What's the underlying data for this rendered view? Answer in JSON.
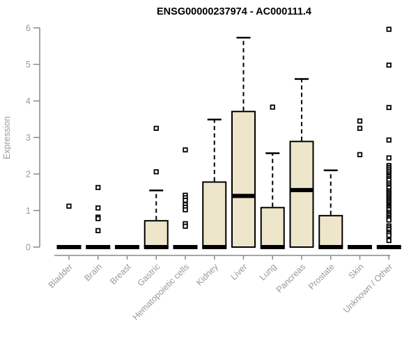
{
  "page": {
    "background": "#ffffff"
  },
  "colors": {
    "box_fill": "#EDE6CA",
    "box_stroke": "#000000",
    "median": "#000000",
    "whisker": "#000000",
    "outlier_fill": "#ffffff",
    "outlier_stroke": "#000000",
    "axis_line": "#888888",
    "tick_label": "#999999",
    "title": "#000000"
  },
  "chart_data": {
    "type": "boxplot",
    "title": "ENSG00000237974 - AC000111.4",
    "xlabel": "",
    "ylabel": "Expression",
    "ylim": [
      0,
      6
    ],
    "yticks": [
      0,
      1,
      2,
      3,
      4,
      5,
      6
    ],
    "grid": false,
    "legend": false,
    "categories": [
      "Bladder",
      "Brain",
      "Breast",
      "Gastric",
      "Hematopoietic cells",
      "Kidney",
      "Liver",
      "Lung",
      "Pancreas",
      "Prostate",
      "Skin",
      "Unknown / Other"
    ],
    "series": [
      {
        "name": "Bladder",
        "low": 0,
        "q1": 0,
        "median": 0,
        "q3": 0,
        "high": 0,
        "outliers": [
          1.12
        ]
      },
      {
        "name": "Brain",
        "low": 0,
        "q1": 0,
        "median": 0,
        "q3": 0,
        "high": 0,
        "outliers": [
          1.63,
          1.07,
          0.82,
          0.78,
          0.45
        ]
      },
      {
        "name": "Breast",
        "low": 0,
        "q1": 0,
        "median": 0,
        "q3": 0,
        "high": 0,
        "outliers": []
      },
      {
        "name": "Gastric",
        "low": 0,
        "q1": 0,
        "median": 0,
        "q3": 0.72,
        "high": 1.55,
        "outliers": [
          3.25,
          2.06
        ]
      },
      {
        "name": "Hematopoietic cells",
        "low": 0,
        "q1": 0,
        "median": 0,
        "q3": 0,
        "high": 0,
        "outliers": [
          2.66,
          1.42,
          1.35,
          1.28,
          1.16,
          1.09,
          1.02,
          0.64,
          0.57
        ]
      },
      {
        "name": "Kidney",
        "low": 0,
        "q1": 0,
        "median": 0,
        "q3": 1.78,
        "high": 3.49,
        "outliers": []
      },
      {
        "name": "Liver",
        "low": 0,
        "q1": 0,
        "median": 1.4,
        "q3": 3.71,
        "high": 5.73,
        "outliers": []
      },
      {
        "name": "Lung",
        "low": 0,
        "q1": 0,
        "median": 0,
        "q3": 1.08,
        "high": 2.57,
        "outliers": [
          3.83
        ]
      },
      {
        "name": "Pancreas",
        "low": 0,
        "q1": 0,
        "median": 1.56,
        "q3": 2.89,
        "high": 4.6,
        "outliers": []
      },
      {
        "name": "Prostate",
        "low": 0,
        "q1": 0,
        "median": 0,
        "q3": 0.86,
        "high": 2.1,
        "outliers": []
      },
      {
        "name": "Skin",
        "low": 0,
        "q1": 0,
        "median": 0,
        "q3": 0,
        "high": 0,
        "outliers": [
          3.45,
          3.25,
          2.53
        ]
      },
      {
        "name": "Unknown / Other",
        "low": 0,
        "q1": 0,
        "median": 0,
        "q3": 0,
        "high": 0,
        "outliers": [
          5.96,
          4.98,
          3.82,
          2.93,
          2.44,
          2.23,
          2.18,
          2.13,
          2.08,
          2.03,
          1.98,
          1.94,
          1.92,
          1.87,
          1.83,
          1.75,
          1.7,
          1.65,
          1.62,
          1.54,
          1.5,
          1.46,
          1.42,
          1.38,
          1.34,
          1.3,
          1.26,
          1.22,
          1.18,
          1.14,
          1.11,
          1.08,
          1.04,
          1.02,
          0.95,
          0.91,
          0.87,
          0.82,
          0.78,
          0.74,
          0.58,
          0.53,
          0.48,
          0.41,
          0.37,
          0.32,
          0.18
        ]
      }
    ]
  }
}
